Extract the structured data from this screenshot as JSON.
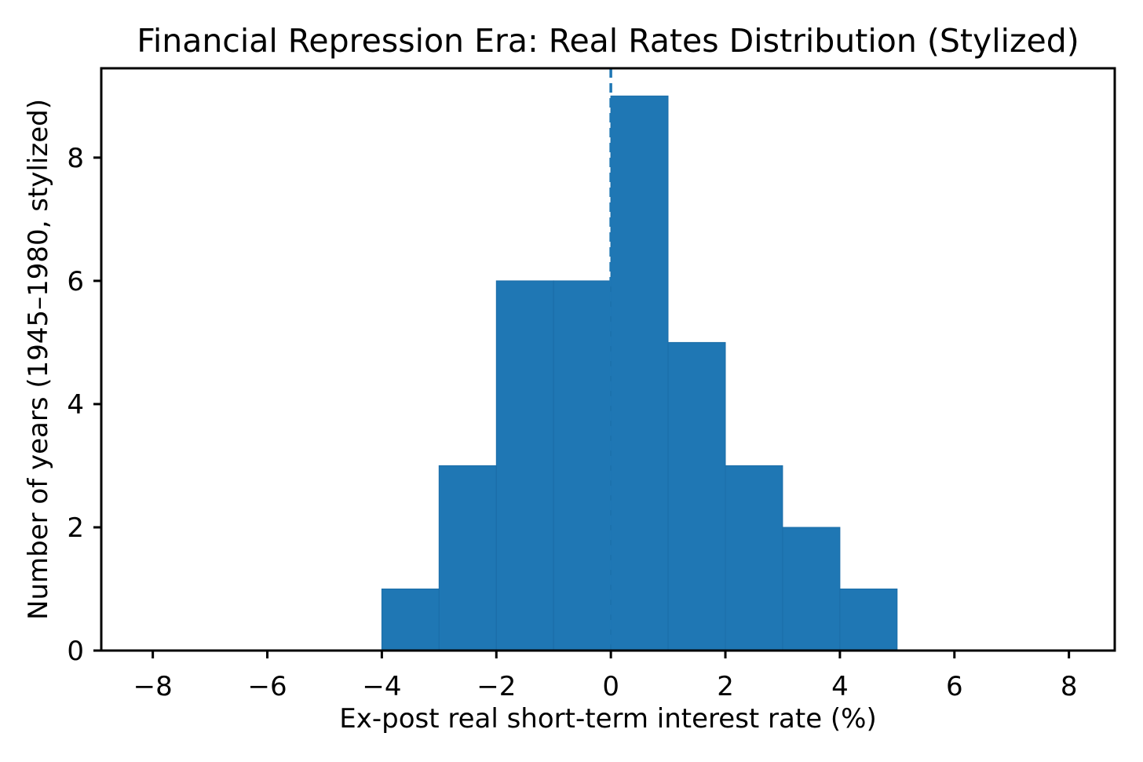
{
  "chart_data": {
    "type": "bar",
    "subtype": "histogram",
    "title": "Financial Repression Era: Real Rates Distribution (Stylized)",
    "xlabel": "Ex-post real short-term interest rate (%)",
    "ylabel": "Number of years (1945–1980, stylized)",
    "bin_edges": [
      -4,
      -3,
      -2,
      -1,
      0,
      1,
      2,
      3,
      4,
      5
    ],
    "counts": [
      1,
      3,
      6,
      6,
      9,
      5,
      3,
      2,
      1
    ],
    "xlim": [
      -8.9,
      8.8
    ],
    "ylim": [
      0,
      9.45
    ],
    "xticks": [
      -8,
      -6,
      -4,
      -2,
      0,
      2,
      4,
      6,
      8
    ],
    "xtick_labels": [
      "−8",
      "−6",
      "−4",
      "−2",
      "0",
      "2",
      "4",
      "6",
      "8"
    ],
    "yticks": [
      0,
      2,
      4,
      6,
      8
    ],
    "ytick_labels": [
      "0",
      "2",
      "4",
      "6",
      "8"
    ],
    "bar_color": "#1f77b4",
    "bar_edge_color": "#1b6da8",
    "vline": {
      "x": 0,
      "style": "dashed",
      "color": "#1f77b4"
    },
    "spine_color": "#000000",
    "grid": false,
    "legend": null,
    "background_color": "#ffffff"
  }
}
